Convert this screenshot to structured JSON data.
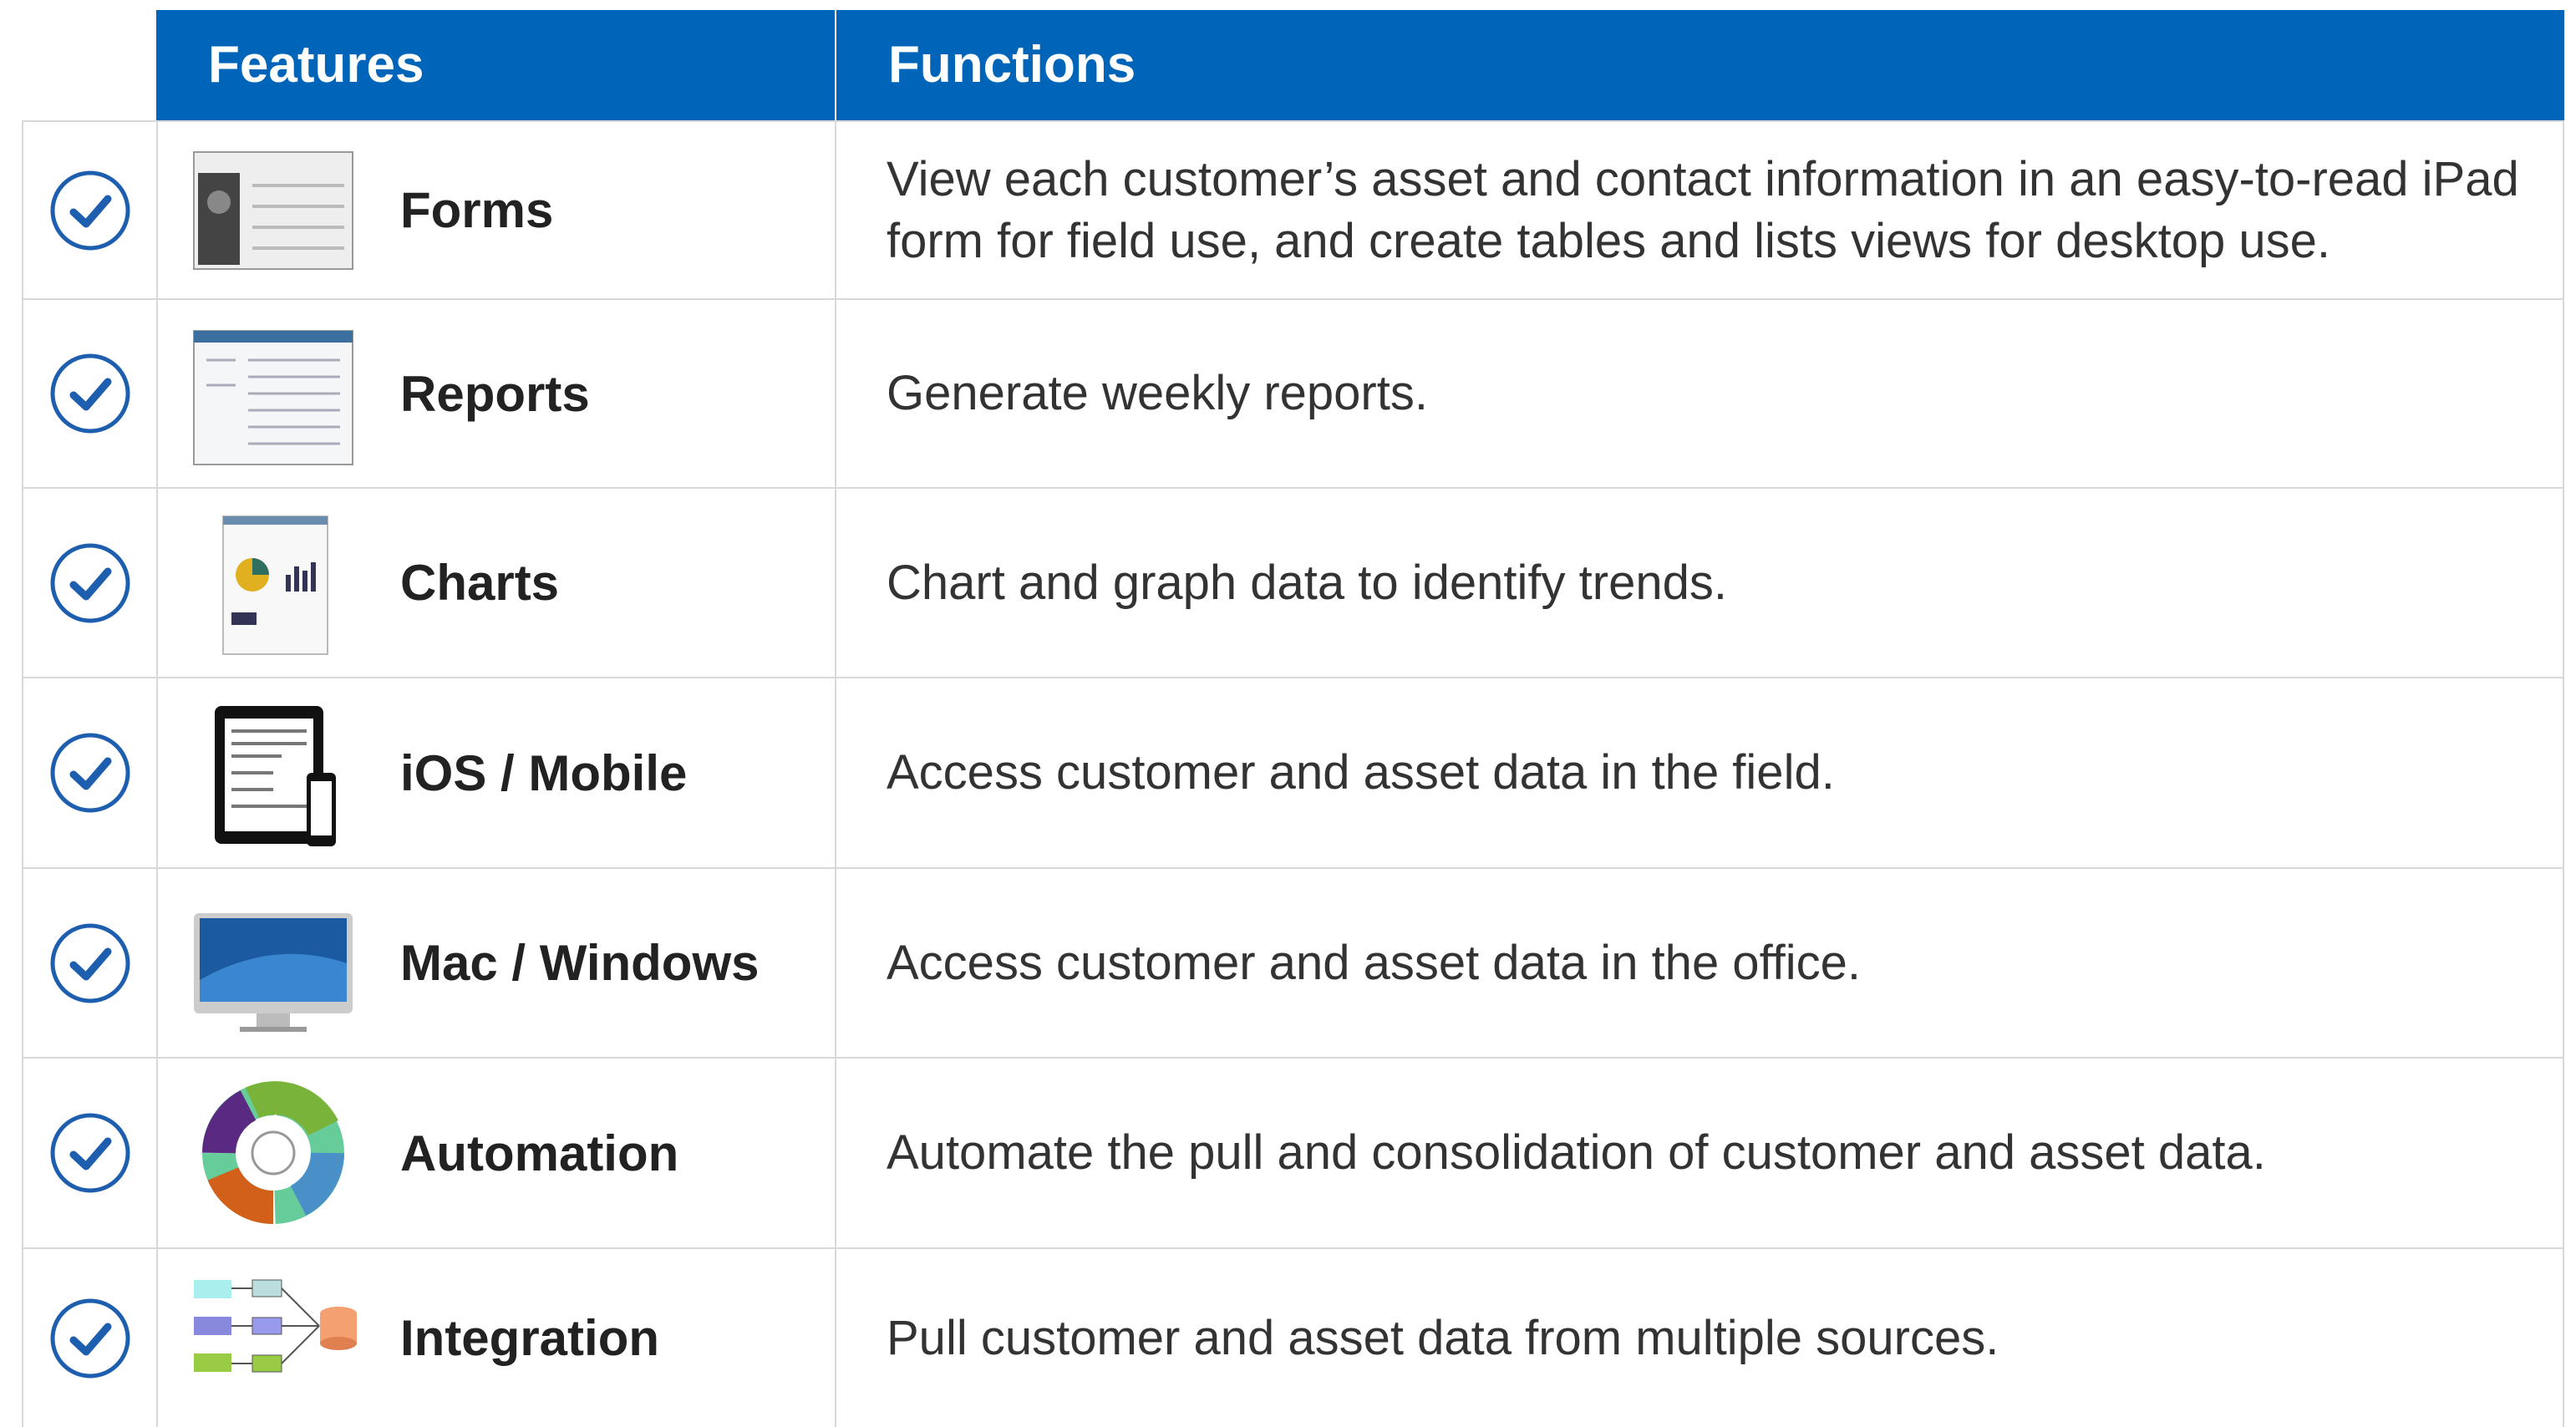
{
  "header": {
    "features": "Features",
    "functions": "Functions"
  },
  "rows": [
    {
      "feature": "Forms",
      "function": "View each customer’s asset and contact information in an easy-to-read iPad form for field use, and create tables and lists views for desktop use."
    },
    {
      "feature": "Reports",
      "function": "Generate weekly reports."
    },
    {
      "feature": "Charts",
      "function": "Chart and graph data to identify trends."
    },
    {
      "feature": "iOS / Mobile",
      "function": "Access customer and asset data in the field."
    },
    {
      "feature": "Mac / Windows",
      "function": "Access customer and asset data in the office."
    },
    {
      "feature": "Automation",
      "function": "Automate the pull and consolidation of customer and asset data."
    },
    {
      "feature": "Integration",
      "function": "Pull customer and asset data from multiple sources."
    }
  ]
}
